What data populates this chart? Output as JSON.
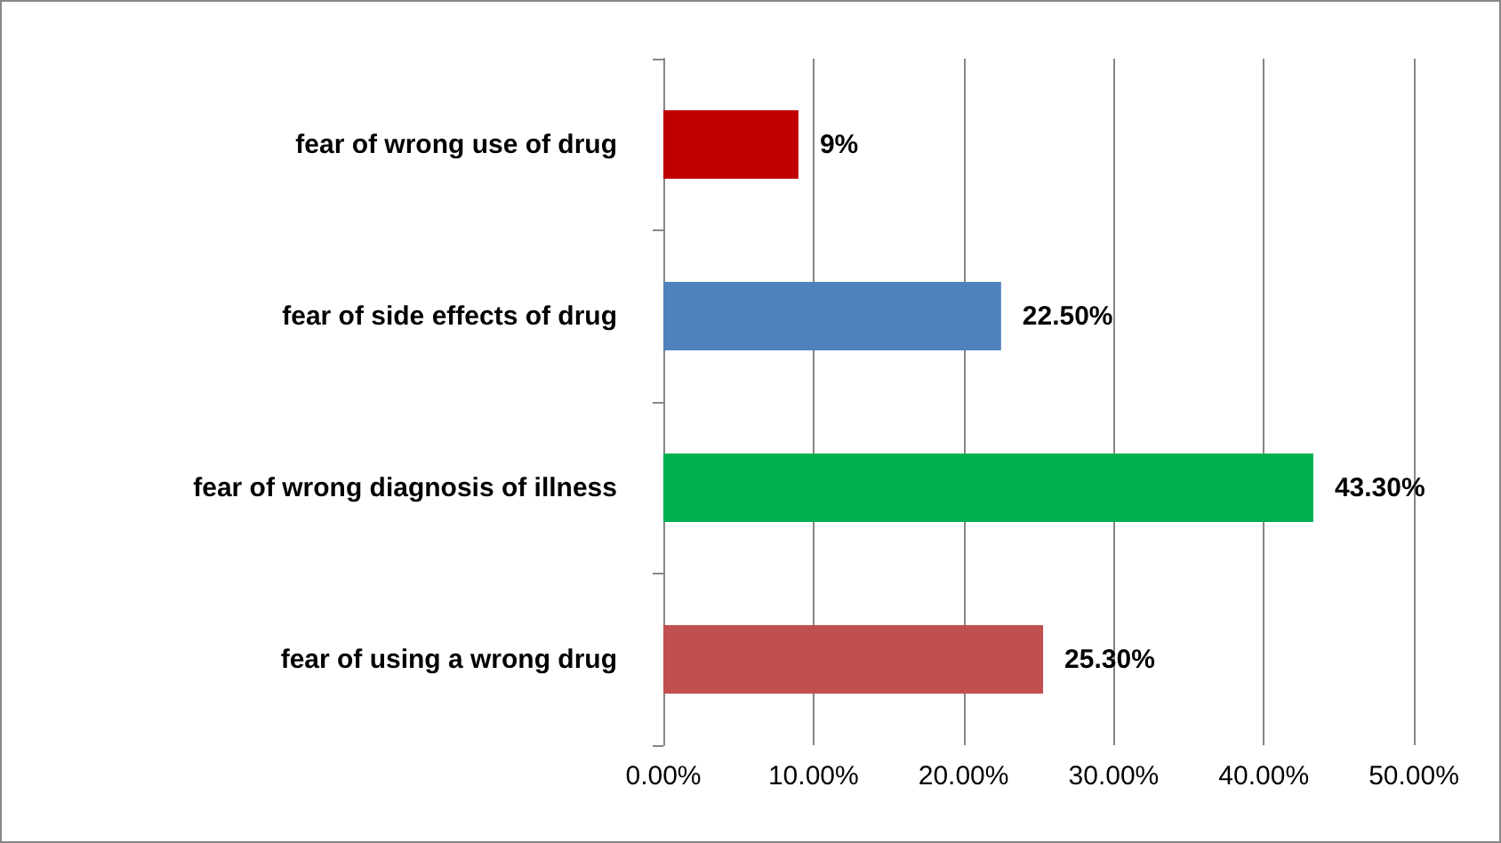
{
  "chart_data": {
    "type": "bar",
    "orientation": "horizontal",
    "categories": [
      "fear of wrong use of drug",
      "fear of side effects of drug",
      "fear of wrong diagnosis of illness",
      "fear of using a wrong drug"
    ],
    "values": [
      9,
      22.5,
      43.3,
      25.3
    ],
    "colors": [
      "#c00000",
      "#4f81bd",
      "#00b050",
      "#c0504d"
    ],
    "value_labels": [
      "9%",
      "22.50%",
      "43.30%",
      "25.30%"
    ],
    "xlim": [
      0,
      50
    ],
    "xticks": [
      {
        "value": 0,
        "label": "0.00%"
      },
      {
        "value": 10,
        "label": "10.00%"
      },
      {
        "value": 20,
        "label": "20.00%"
      },
      {
        "value": 30,
        "label": "30.00%"
      },
      {
        "value": 40,
        "label": "40.00%"
      },
      {
        "value": 50,
        "label": "50.00%"
      }
    ],
    "grid": "x"
  }
}
